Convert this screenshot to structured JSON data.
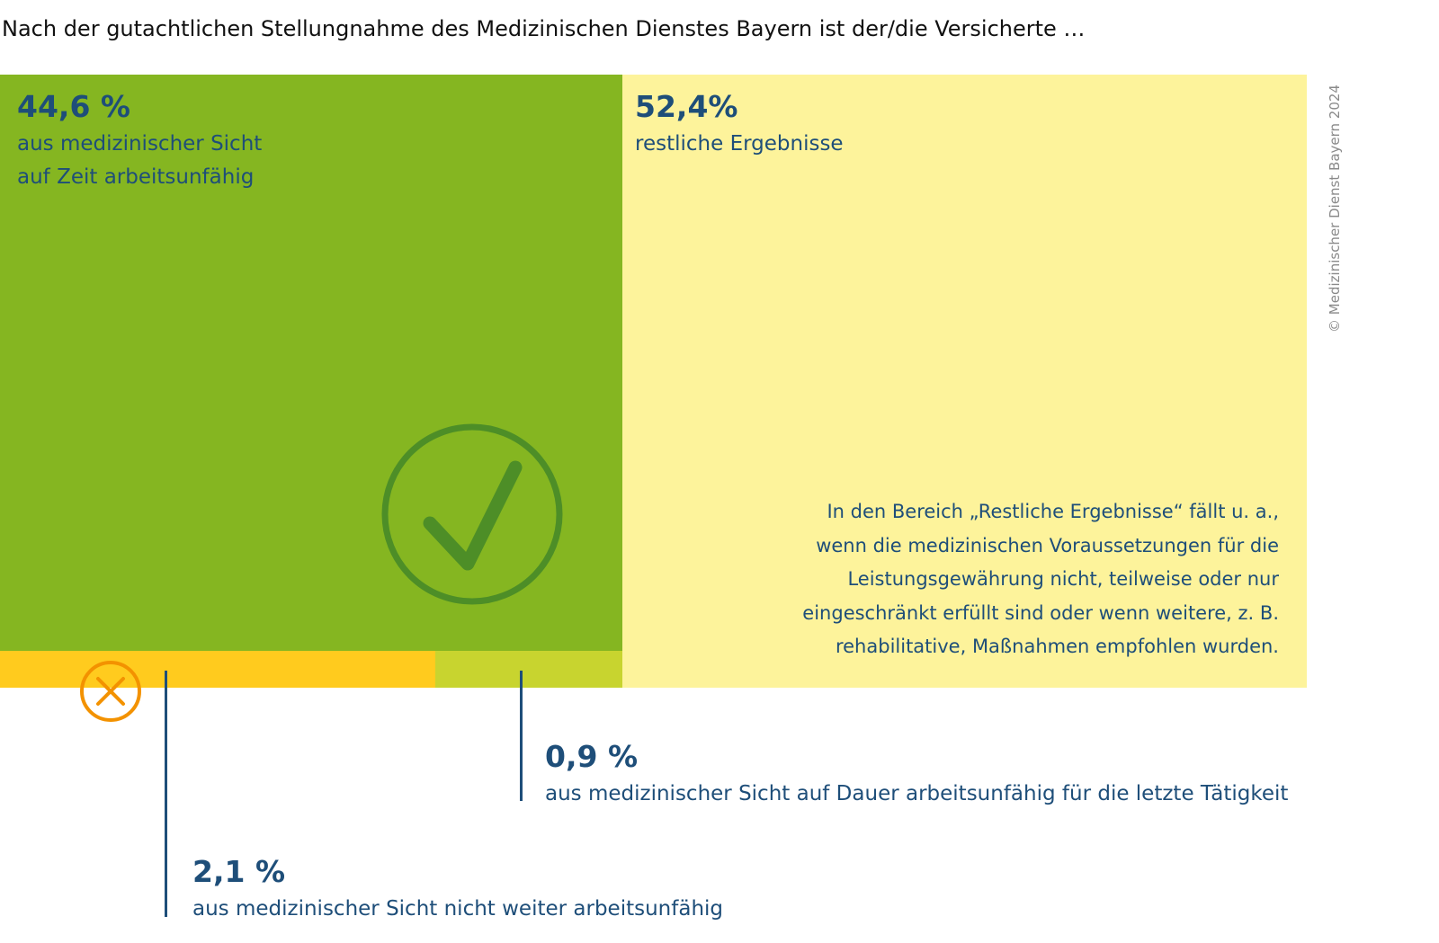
{
  "title": "Nach der gutachtlichen Stellungnahme des Medizinischen Dienstes Bayern ist der/die Versicherte …",
  "copyright": "© Medizinischer Dienst Bayern 2024",
  "chart_data": {
    "type": "treemap",
    "title": "Nach der gutachtlichen Stellungnahme des Medizinischen Dienstes Bayern ist der/die Versicherte …",
    "unit": "%",
    "segments": [
      {
        "key": "temp",
        "value": 44.6,
        "value_label": "44,6 %",
        "label_lines": [
          "aus medizinischer Sicht",
          "auf Zeit arbeitsunfähig"
        ],
        "color": "#85b621",
        "icon": "check-circle-icon"
      },
      {
        "key": "rest",
        "value": 52.4,
        "value_label": "52,4%",
        "label_lines": [
          "restliche Ergebnisse"
        ],
        "color": "#fdf39b"
      },
      {
        "key": "notfurther",
        "value": 2.1,
        "value_label": "2,1 %",
        "label_lines": [
          "aus medizinischer Sicht nicht weiter arbeitsunfähig"
        ],
        "color": "#ffcb1e",
        "icon": "x-circle-icon"
      },
      {
        "key": "permanent",
        "value": 0.9,
        "value_label": "0,9 %",
        "label_lines": [
          "aus medizinischer Sicht auf Dauer arbeitsunfähig für die letzte Tätigkeit"
        ],
        "color": "#c8d42f"
      }
    ],
    "note_lines": [
      "In den Bereich „Restliche Ergebnisse“ fällt u. a.,",
      "wenn die medizinischen Voraussetzungen für die",
      "Leistungsgewährung nicht, teilweise oder nur",
      "eingeschränkt erfüllt sind oder wenn weitere, z. B.",
      "rehabilitative, Maßnahmen empfohlen wurden."
    ]
  }
}
